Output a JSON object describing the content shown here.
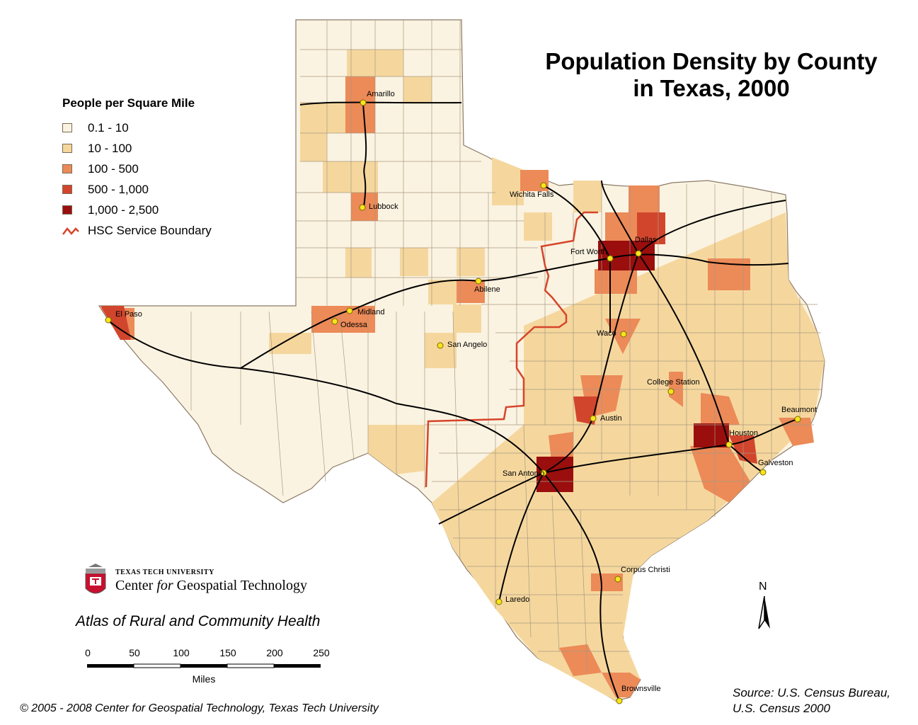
{
  "title": {
    "line1": "Population Density by County",
    "line2": "in Texas, 2000"
  },
  "legend": {
    "title": "People per Square Mile",
    "classes": [
      {
        "label": "0.1 - 10",
        "color": "#fbf3e1"
      },
      {
        "label": "10 - 100",
        "color": "#f5d79e"
      },
      {
        "label": "100 - 500",
        "color": "#ec8a58"
      },
      {
        "label": "500 - 1,000",
        "color": "#d2452d"
      },
      {
        "label": "1,000 - 2,500",
        "color": "#9a0e0e"
      }
    ],
    "boundary_label": "HSC Service Boundary",
    "boundary_color": "#d6452a"
  },
  "cities": [
    {
      "name": "Amarillo"
    },
    {
      "name": "Lubbock"
    },
    {
      "name": "Wichita Falls"
    },
    {
      "name": "Fort Worth"
    },
    {
      "name": "Dallas"
    },
    {
      "name": "Abilene"
    },
    {
      "name": "El Paso"
    },
    {
      "name": "Midland"
    },
    {
      "name": "Odessa"
    },
    {
      "name": "San Angelo"
    },
    {
      "name": "Waco"
    },
    {
      "name": "College Station"
    },
    {
      "name": "Beaumont"
    },
    {
      "name": "Austin"
    },
    {
      "name": "Houston"
    },
    {
      "name": "Galveston"
    },
    {
      "name": "San Antonio"
    },
    {
      "name": "Corpus Christi"
    },
    {
      "name": "Laredo"
    },
    {
      "name": "Brownsville"
    }
  ],
  "logo": {
    "small": "TEXAS TECH UNIVERSITY",
    "big_pre": "Center ",
    "big_italic": "for",
    "big_post": " Geospatial Technology"
  },
  "atlas": "Atlas of Rural and Community Health",
  "scale": {
    "ticks": [
      "0",
      "50",
      "100",
      "150",
      "200",
      "250"
    ],
    "unit": "Miles"
  },
  "north": "N",
  "copyright": "© 2005 - 2008 Center for Geospatial Technology, Texas Tech University",
  "source": {
    "line1": "Source:  U.S. Census Bureau,",
    "line2": "U.S. Census 2000"
  }
}
